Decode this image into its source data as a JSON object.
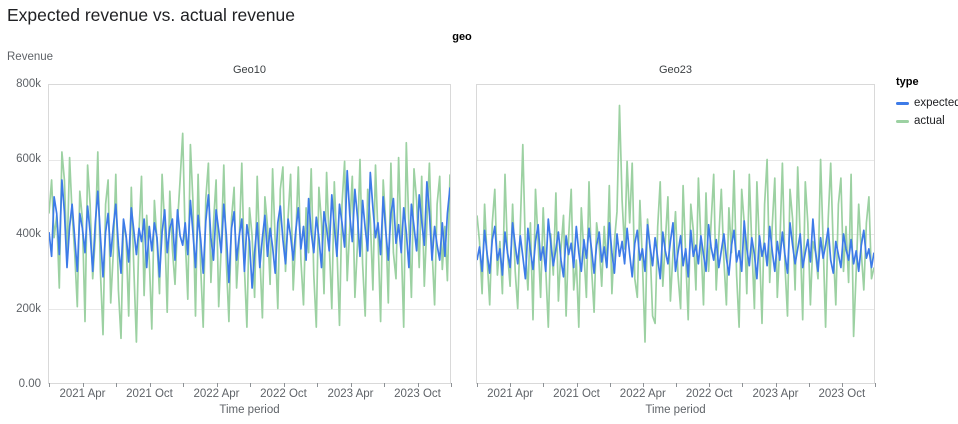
{
  "title": "Expected revenue vs. actual revenue",
  "facet": {
    "field": "geo"
  },
  "axes": {
    "y_title": "Revenue",
    "x_title": "Time period",
    "y_ticks": [
      {
        "v": 800,
        "label": "800k"
      },
      {
        "v": 600,
        "label": "600k"
      },
      {
        "v": 400,
        "label": "400k"
      },
      {
        "v": 200,
        "label": "200k"
      },
      {
        "v": 0,
        "label": "0.00"
      }
    ],
    "y_gridlines_k": [
      600,
      400,
      200
    ],
    "x_minor_tick_months": [
      0,
      3,
      6,
      9,
      12,
      15,
      18,
      21,
      24,
      27,
      30,
      33,
      36
    ],
    "x_labels": [
      {
        "m": 3,
        "label": "2021 Apr"
      },
      {
        "m": 9,
        "label": "2021 Oct"
      },
      {
        "m": 15,
        "label": "2022 Apr"
      },
      {
        "m": 21,
        "label": "2022 Oct"
      },
      {
        "m": 27,
        "label": "2023 Apr"
      },
      {
        "m": 33,
        "label": "2023 Oct"
      }
    ]
  },
  "legend": {
    "title": "type",
    "items": [
      {
        "label": "expected",
        "color": "#3d7be8"
      },
      {
        "label": "actual",
        "color": "#9cd1a2"
      }
    ]
  },
  "colors": {
    "expected": "#3d7be8",
    "actual": "#9cd1a2",
    "grid": "#e8e8e8",
    "border": "#d9d9d9"
  },
  "chart_data": [
    {
      "type": "line",
      "panel": "Geo10",
      "x_start": "2021-01",
      "x_end": "2024-01",
      "x_freq": "weekly (estimated)",
      "y_unit": "thousands (k)",
      "ylim_k": [
        0,
        800
      ],
      "series": [
        {
          "name": "expected",
          "values_k": [
            405,
            340,
            500,
            455,
            345,
            545,
            460,
            310,
            420,
            480,
            390,
            300,
            455,
            415,
            350,
            475,
            405,
            300,
            430,
            515,
            395,
            285,
            405,
            455,
            340,
            420,
            480,
            370,
            295,
            440,
            395,
            325,
            470,
            410,
            345,
            415,
            380,
            440,
            310,
            420,
            355,
            430,
            390,
            285,
            405,
            465,
            350,
            415,
            440,
            330,
            465,
            395,
            370,
            430,
            345,
            490,
            405,
            310,
            450,
            385,
            295,
            435,
            505,
            390,
            330,
            465,
            410,
            350,
            480,
            395,
            270,
            415,
            460,
            330,
            395,
            440,
            300,
            425,
            380,
            255,
            350,
            430,
            310,
            390,
            450,
            340,
            415,
            365,
            295,
            430,
            475,
            385,
            320,
            440,
            395,
            330,
            410,
            470,
            360,
            420,
            330,
            495,
            405,
            350,
            445,
            390,
            310,
            460,
            415,
            355,
            505,
            420,
            340,
            480,
            430,
            365,
            570,
            450,
            380,
            520,
            445,
            340,
            490,
            415,
            355,
            565,
            470,
            390,
            430,
            345,
            500,
            410,
            330,
            455,
            495,
            375,
            425,
            350,
            470,
            405,
            310,
            480,
            420,
            355,
            505,
            435,
            370,
            540,
            460,
            330,
            420,
            370,
            330,
            430,
            340,
            455,
            525
          ]
        },
        {
          "name": "actual",
          "values_k": [
            455,
            545,
            390,
            450,
            255,
            620,
            545,
            330,
            605,
            455,
            350,
            205,
            515,
            440,
            165,
            585,
            480,
            280,
            390,
            620,
            300,
            130,
            480,
            545,
            215,
            350,
            560,
            250,
            120,
            430,
            390,
            180,
            525,
            310,
            110,
            405,
            555,
            235,
            450,
            330,
            145,
            490,
            380,
            240,
            560,
            420,
            190,
            515,
            360,
            265,
            430,
            545,
            670,
            390,
            225,
            640,
            490,
            180,
            560,
            310,
            150,
            495,
            590,
            270,
            430,
            545,
            205,
            365,
            585,
            320,
            165,
            440,
            525,
            255,
            380,
            590,
            310,
            150,
            470,
            395,
            230,
            555,
            345,
            175,
            500,
            420,
            265,
            575,
            380,
            200,
            520,
            580,
            300,
            445,
            560,
            250,
            390,
            580,
            330,
            210,
            470,
            350,
            575,
            290,
            150,
            525,
            430,
            240,
            565,
            375,
            200,
            540,
            365,
            155,
            480,
            595,
            275,
            420,
            555,
            230,
            375,
            600,
            320,
            180,
            520,
            440,
            250,
            585,
            395,
            165,
            545,
            430,
            215,
            590,
            350,
            280,
            605,
            380,
            150,
            645,
            420,
            230,
            575,
            490,
            310,
            555,
            260,
            430,
            590,
            360,
            210,
            480,
            555,
            305,
            420,
            275,
            560
          ]
        }
      ]
    },
    {
      "type": "line",
      "panel": "Geo23",
      "x_start": "2021-01",
      "x_end": "2024-01",
      "x_freq": "weekly (estimated)",
      "y_unit": "thousands (k)",
      "ylim_k": [
        0,
        800
      ],
      "series": [
        {
          "name": "expected",
          "values_k": [
            330,
            365,
            300,
            410,
            345,
            295,
            385,
            420,
            330,
            360,
            290,
            405,
            350,
            310,
            430,
            370,
            320,
            395,
            340,
            280,
            415,
            355,
            305,
            380,
            425,
            330,
            365,
            300,
            440,
            375,
            315,
            360,
            405,
            330,
            285,
            395,
            345,
            375,
            310,
            420,
            350,
            300,
            385,
            335,
            415,
            360,
            295,
            370,
            405,
            325,
            365,
            310,
            430,
            350,
            295,
            400,
            340,
            380,
            320,
            415,
            345,
            285,
            375,
            410,
            330,
            360,
            300,
            425,
            365,
            315,
            390,
            335,
            280,
            405,
            355,
            320,
            380,
            430,
            300,
            350,
            395,
            315,
            360,
            285,
            410,
            340,
            370,
            320,
            395,
            345,
            300,
            425,
            365,
            330,
            385,
            310,
            355,
            400,
            335,
            290,
            370,
            410,
            325,
            355,
            300,
            435,
            360,
            315,
            390,
            345,
            280,
            395,
            340,
            375,
            315,
            420,
            355,
            300,
            380,
            330,
            405,
            345,
            295,
            430,
            370,
            320,
            360,
            400,
            310,
            350,
            385,
            325,
            440,
            355,
            300,
            390,
            335,
            370,
            415,
            330,
            295,
            380,
            345,
            310,
            400,
            360,
            330,
            385,
            320,
            355,
            300,
            370,
            410,
            335,
            360,
            310,
            350
          ]
        },
        {
          "name": "actual",
          "values_k": [
            450,
            380,
            240,
            480,
            330,
            210,
            430,
            520,
            290,
            380,
            240,
            560,
            350,
            260,
            480,
            300,
            200,
            420,
            640,
            360,
            250,
            430,
            170,
            520,
            380,
            230,
            470,
            310,
            150,
            400,
            290,
            510,
            220,
            360,
            450,
            180,
            390,
            520,
            250,
            330,
            150,
            470,
            350,
            230,
            540,
            310,
            190,
            430,
            370,
            260,
            420,
            310,
            530,
            240,
            380,
            460,
            745,
            490,
            360,
            595,
            430,
            590,
            280,
            230,
            490,
            330,
            110,
            440,
            360,
            180,
            160,
            420,
            540,
            260,
            380,
            500,
            220,
            350,
            460,
            290,
            200,
            530,
            340,
            170,
            480,
            410,
            250,
            550,
            380,
            210,
            510,
            300,
            430,
            560,
            250,
            390,
            520,
            330,
            210,
            470,
            350,
            570,
            290,
            150,
            520,
            430,
            240,
            560,
            370,
            200,
            540,
            360,
            160,
            480,
            600,
            270,
            420,
            550,
            230,
            370,
            590,
            320,
            180,
            520,
            440,
            250,
            580,
            390,
            170,
            540,
            430,
            210,
            380,
            350,
            280,
            600,
            380,
            150,
            440,
            590,
            360,
            210,
            480,
            550,
            300,
            420,
            270,
            560,
            125,
            300,
            480,
            350,
            250,
            430,
            500,
            280,
            310
          ]
        }
      ]
    }
  ]
}
